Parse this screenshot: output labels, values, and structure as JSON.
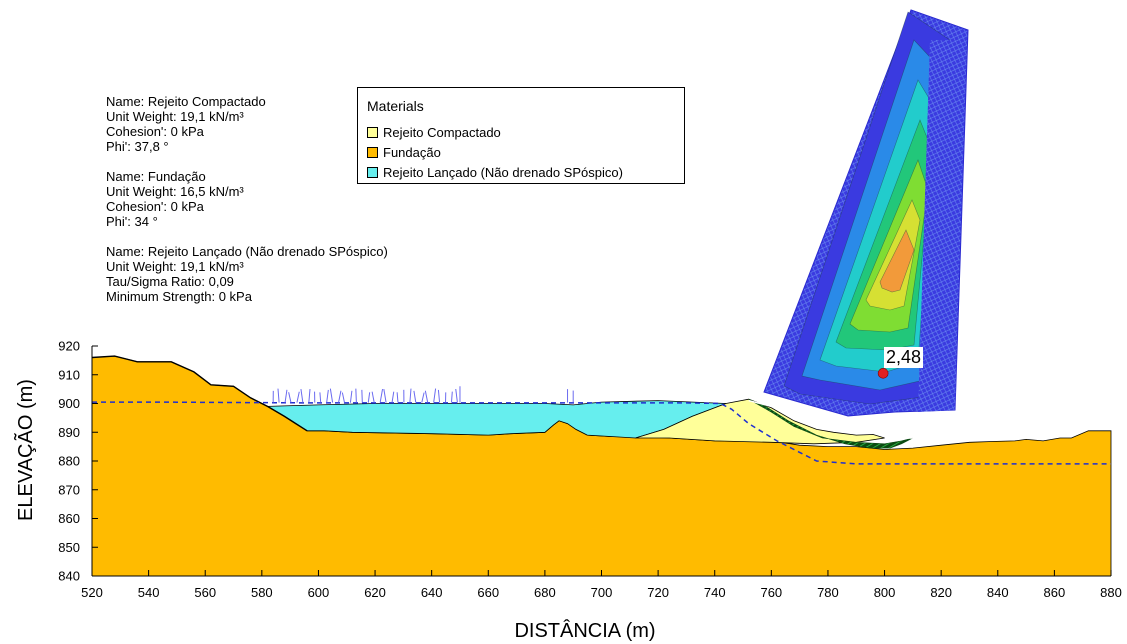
{
  "chart_data": {
    "type": "area",
    "title": "",
    "xlabel": "DISTÂNCIA (m)",
    "ylabel": "ELEVAÇÃO (m)",
    "xlim": [
      520,
      880
    ],
    "ylim": [
      840,
      920
    ],
    "xticks": [
      520,
      540,
      560,
      580,
      600,
      620,
      640,
      660,
      680,
      700,
      720,
      740,
      760,
      780,
      800,
      820,
      840,
      860,
      880
    ],
    "yticks": [
      840,
      850,
      860,
      870,
      880,
      890,
      900,
      910,
      920
    ],
    "grid": false,
    "legend_position": "top-center",
    "factor_of_safety": {
      "label": "2,48",
      "x": 799.5,
      "y": 910.5
    },
    "materials_legend": {
      "title": "Materials",
      "entries": [
        {
          "name": "Rejeito Compactado",
          "color": "#ffff99"
        },
        {
          "name": "Fundação",
          "color": "#ffbb00"
        },
        {
          "name": "Rejeito Lançado (Não drenado SPóspico)",
          "color": "#66eeee"
        }
      ]
    },
    "regions": {
      "foundation_surface": [
        [
          520,
          916
        ],
        [
          528,
          916.5
        ],
        [
          536,
          914.5
        ],
        [
          548,
          914.5
        ],
        [
          556,
          911
        ],
        [
          562,
          906.5
        ],
        [
          570,
          906
        ],
        [
          576,
          902
        ],
        [
          582,
          899
        ],
        [
          588,
          895.5
        ],
        [
          592,
          893
        ],
        [
          596,
          890.5
        ],
        [
          602,
          890.5
        ],
        [
          612,
          890
        ],
        [
          640,
          889.5
        ],
        [
          660,
          889
        ],
        [
          668,
          889.5
        ],
        [
          680,
          890
        ],
        [
          683,
          892.5
        ],
        [
          685,
          894
        ],
        [
          688,
          893
        ],
        [
          691,
          891
        ],
        [
          695,
          889
        ],
        [
          704,
          888.5
        ],
        [
          712,
          888.5
        ],
        [
          724,
          888
        ],
        [
          740,
          887
        ],
        [
          760,
          887
        ],
        [
          770,
          885.5
        ],
        [
          780,
          885
        ],
        [
          790,
          885
        ],
        [
          800,
          884
        ],
        [
          810,
          884.5
        ],
        [
          820,
          885.5
        ],
        [
          830,
          886.5
        ],
        [
          838,
          886.8
        ],
        [
          846,
          887
        ],
        [
          850,
          887.5
        ],
        [
          856,
          887
        ],
        [
          862,
          888
        ],
        [
          866,
          888
        ],
        [
          872,
          890.5
        ],
        [
          880,
          890.5
        ]
      ],
      "compacted_tailings": [
        [
          712,
          888
        ],
        [
          722,
          891
        ],
        [
          732,
          895.5
        ],
        [
          744,
          900
        ],
        [
          752,
          901.5
        ],
        [
          760,
          898.5
        ],
        [
          768,
          894
        ],
        [
          776,
          891
        ],
        [
          782,
          890
        ],
        [
          790,
          889
        ],
        [
          796,
          889.2
        ],
        [
          800,
          888
        ],
        [
          790,
          886.5
        ],
        [
          775,
          886
        ],
        [
          760,
          886.5
        ],
        [
          740,
          887
        ],
        [
          724,
          888
        ]
      ],
      "deposited_tailings": [
        [
          582,
          899
        ],
        [
          600,
          899.5
        ],
        [
          620,
          900
        ],
        [
          640,
          900
        ],
        [
          660,
          900
        ],
        [
          680,
          900
        ],
        [
          690,
          899.5
        ],
        [
          700,
          900.5
        ],
        [
          720,
          901
        ],
        [
          744,
          900
        ],
        [
          732,
          895.5
        ],
        [
          722,
          891
        ],
        [
          712,
          888
        ],
        [
          704,
          888.5
        ],
        [
          695,
          889
        ],
        [
          691,
          891
        ],
        [
          688,
          893
        ],
        [
          685,
          894
        ],
        [
          683,
          892.5
        ],
        [
          680,
          890
        ],
        [
          668,
          889.5
        ],
        [
          660,
          889
        ],
        [
          640,
          889.5
        ],
        [
          612,
          890
        ],
        [
          602,
          890.5
        ],
        [
          596,
          890.5
        ],
        [
          592,
          893
        ],
        [
          588,
          895.5
        ]
      ]
    },
    "series": [
      {
        "name": "",
        "style": "piezometric-dashed",
        "x": [
          520,
          545,
          575,
          600,
          630,
          660,
          680,
          700,
          730,
          742,
          746,
          752,
          762,
          768,
          776,
          790,
          820,
          850,
          880
        ],
        "y": [
          900.5,
          900.5,
          900.3,
          900.2,
          900.2,
          900.2,
          900.2,
          900.2,
          900.2,
          900,
          898,
          893,
          887,
          884,
          880,
          879,
          879,
          879,
          879
        ]
      }
    ]
  },
  "material_properties": [
    {
      "lines": [
        "Name: Rejeito Compactado",
        "Unit Weight: 19,1 kN/m³",
        "Cohesion': 0 kPa",
        "Phi': 37,8 °"
      ]
    },
    {
      "lines": [
        "Name: Fundação",
        "Unit Weight: 16,5 kN/m³",
        "Cohesion': 0 kPa",
        "Phi': 34 °"
      ]
    },
    {
      "lines": [
        "Name: Rejeito Lançado (Não drenado SPóspico)",
        "Unit Weight: 19,1 kN/m³",
        "Tau/Sigma Ratio: 0,09",
        "Minimum Strength: 0 kPa"
      ]
    }
  ],
  "colors": {
    "foundation": "#ffbb00",
    "compacted": "#ffff99",
    "deposited": "#66eeee",
    "water_table": "#1f2fd0",
    "slip_hatch": "#1a8a2a",
    "grid_blue": "#3a3ae0",
    "contour_ramp": [
      "#3a3ae0",
      "#2a8ae8",
      "#22cccc",
      "#22c77a",
      "#7fdd33",
      "#d6e033",
      "#f29a3a"
    ],
    "fos_point": "#e02020"
  }
}
